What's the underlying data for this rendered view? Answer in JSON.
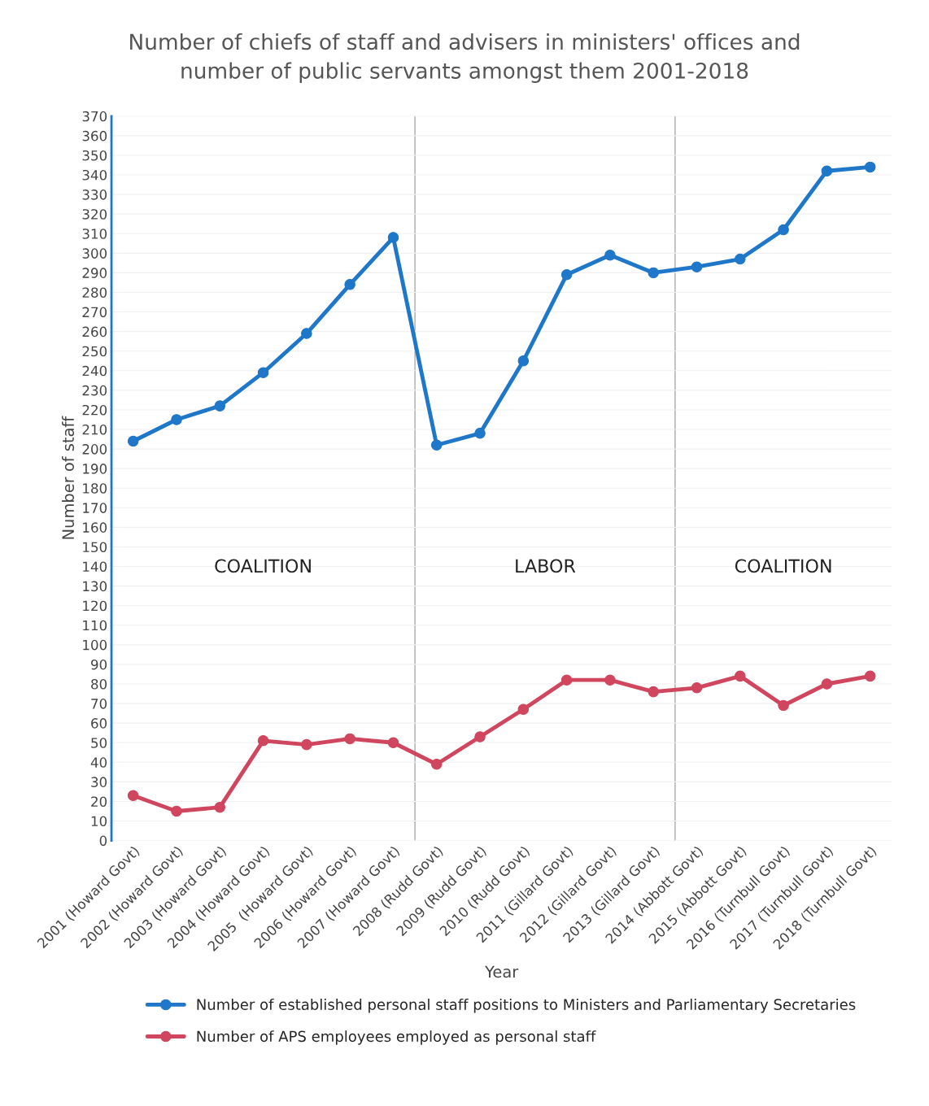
{
  "chart_data": {
    "type": "line",
    "title": "Number of chiefs of staff and advisers in ministers' offices and\nnumber of public servants amongst them 2001-2018",
    "xlabel": "Year",
    "ylabel": "Number of staff",
    "categories": [
      "2001 (Howard Govt)",
      "2002 (Howard Govt)",
      "2003 (Howard Govt)",
      "2004 (Howard Govt)",
      "2005  (Howard Govt)",
      "2006 (Howard Govt)",
      "2007 (Howard Govt)",
      "2008 (Rudd Govt)",
      "2009 (Rudd Govt)",
      "2010 (Rudd Govt)",
      "2011 (Gillard Govt)",
      "2012 (Gillard Govt)",
      "2013 (Gillard Govt)",
      "2014 (Abbott Govt)",
      "2015 (Abbott Govt)",
      "2016 (Turnbull Govt)",
      "2017 (Turnbull Govt)",
      "2018 (Turnbull Govt)"
    ],
    "series": [
      {
        "name": "Number of established personal staff positions to Ministers and Parliamentary Secretaries",
        "color": "#1f77c9",
        "values": [
          204,
          215,
          222,
          239,
          259,
          284,
          308,
          202,
          208,
          245,
          289,
          299,
          290,
          293,
          297,
          312,
          342,
          344
        ]
      },
      {
        "name": "Number of APS employees employed as personal staff",
        "color": "#d0465e",
        "values": [
          23,
          15,
          17,
          51,
          49,
          52,
          50,
          39,
          53,
          67,
          82,
          82,
          76,
          78,
          84,
          69,
          80,
          84
        ]
      }
    ],
    "ylim": [
      0,
      370
    ],
    "yticks": [
      0,
      10,
      20,
      30,
      40,
      50,
      60,
      70,
      80,
      90,
      100,
      110,
      120,
      130,
      140,
      150,
      160,
      170,
      180,
      190,
      200,
      210,
      220,
      230,
      240,
      250,
      260,
      270,
      280,
      290,
      300,
      310,
      320,
      330,
      340,
      350,
      360,
      370
    ],
    "annotations": [
      "COALITION",
      "LABOR",
      "COALITION"
    ],
    "grid": "y",
    "legend": "bottom",
    "marker": "circle",
    "line_style": "solid"
  }
}
